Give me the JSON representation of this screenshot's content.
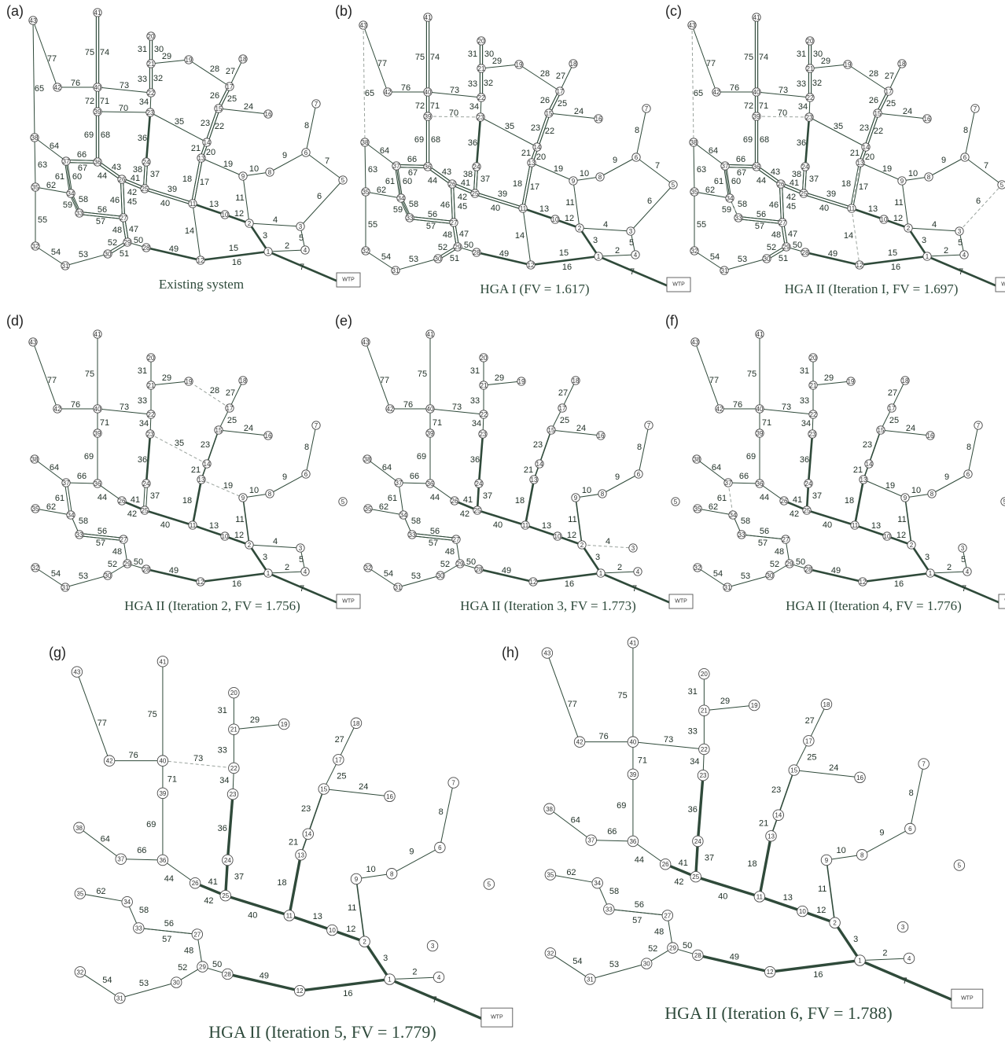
{
  "panels": [
    {
      "letter": "(a)",
      "caption": "Existing system"
    },
    {
      "letter": "(b)",
      "caption": "HGA I (FV = 1.617)"
    },
    {
      "letter": "(c)",
      "caption": "HGA II (Iteration I, FV = 1.697)"
    },
    {
      "letter": "(d)",
      "caption": "HGA II (Iteration 2, FV = 1.756)"
    },
    {
      "letter": "(e)",
      "caption": "HGA II (Iteration 3, FV = 1.773)"
    },
    {
      "letter": "(f)",
      "caption": "HGA II (Iteration 4, FV = 1.776)"
    },
    {
      "letter": "(g)",
      "caption": "HGA II (Iteration 5, FV = 1.779)"
    },
    {
      "letter": "(h)",
      "caption": "HGA II (Iteration 6, FV = 1.788)"
    }
  ],
  "wtp_label": "WTP",
  "network": {
    "nodes": [
      {
        "id": "1"
      },
      {
        "id": "2"
      },
      {
        "id": "3"
      },
      {
        "id": "4"
      },
      {
        "id": "5"
      },
      {
        "id": "6"
      },
      {
        "id": "7"
      },
      {
        "id": "8"
      },
      {
        "id": "9"
      },
      {
        "id": "10"
      },
      {
        "id": "11"
      },
      {
        "id": "12"
      },
      {
        "id": "13"
      },
      {
        "id": "14"
      },
      {
        "id": "15"
      },
      {
        "id": "16"
      },
      {
        "id": "17"
      },
      {
        "id": "18"
      },
      {
        "id": "19"
      },
      {
        "id": "20"
      },
      {
        "id": "21"
      },
      {
        "id": "22"
      },
      {
        "id": "23"
      },
      {
        "id": "24"
      },
      {
        "id": "25"
      },
      {
        "id": "26"
      },
      {
        "id": "27"
      },
      {
        "id": "28"
      },
      {
        "id": "29"
      },
      {
        "id": "30"
      },
      {
        "id": "31"
      },
      {
        "id": "32"
      },
      {
        "id": "33"
      },
      {
        "id": "34"
      },
      {
        "id": "35"
      },
      {
        "id": "36"
      },
      {
        "id": "37"
      },
      {
        "id": "38"
      },
      {
        "id": "39"
      },
      {
        "id": "40"
      },
      {
        "id": "41"
      },
      {
        "id": "42"
      },
      {
        "id": "43"
      }
    ],
    "pipes": [
      {
        "id": "7",
        "from": "WTP",
        "to": "1"
      },
      {
        "id": "2",
        "from": "1",
        "to": "4"
      },
      {
        "id": "5",
        "from": "4",
        "to": "3"
      },
      {
        "id": "3",
        "from": "1",
        "to": "2"
      },
      {
        "id": "4",
        "from": "2",
        "to": "3"
      },
      {
        "id": "6",
        "from": "3",
        "to": "5"
      },
      {
        "id": "7b",
        "label": "7",
        "from": "5",
        "to": "6"
      },
      {
        "id": "8",
        "from": "6",
        "to": "7"
      },
      {
        "id": "9",
        "from": "6",
        "to": "8"
      },
      {
        "id": "10",
        "from": "8",
        "to": "9"
      },
      {
        "id": "11",
        "from": "9",
        "to": "2"
      },
      {
        "id": "12",
        "from": "2",
        "to": "10"
      },
      {
        "id": "13",
        "from": "10",
        "to": "11"
      },
      {
        "id": "14",
        "from": "11",
        "to": "12"
      },
      {
        "id": "15",
        "from": "12",
        "to": "1"
      },
      {
        "id": "16",
        "from": "12",
        "to": "1"
      },
      {
        "id": "17",
        "from": "11",
        "to": "13"
      },
      {
        "id": "18",
        "from": "11",
        "to": "13"
      },
      {
        "id": "19",
        "from": "13",
        "to": "9"
      },
      {
        "id": "20",
        "from": "13",
        "to": "14"
      },
      {
        "id": "21",
        "from": "13",
        "to": "14"
      },
      {
        "id": "22",
        "from": "14",
        "to": "15"
      },
      {
        "id": "23",
        "from": "14",
        "to": "15"
      },
      {
        "id": "24",
        "from": "15",
        "to": "16"
      },
      {
        "id": "25",
        "from": "15",
        "to": "17"
      },
      {
        "id": "26",
        "from": "15",
        "to": "17"
      },
      {
        "id": "27",
        "from": "17",
        "to": "18"
      },
      {
        "id": "28",
        "from": "17",
        "to": "19"
      },
      {
        "id": "29",
        "from": "19",
        "to": "21"
      },
      {
        "id": "30",
        "from": "21",
        "to": "20"
      },
      {
        "id": "31",
        "from": "21",
        "to": "20"
      },
      {
        "id": "32",
        "from": "22",
        "to": "21"
      },
      {
        "id": "33",
        "from": "22",
        "to": "21"
      },
      {
        "id": "34",
        "from": "23",
        "to": "22"
      },
      {
        "id": "35",
        "from": "23",
        "to": "14"
      },
      {
        "id": "36",
        "from": "24",
        "to": "23"
      },
      {
        "id": "37",
        "from": "25",
        "to": "24"
      },
      {
        "id": "38",
        "from": "25",
        "to": "24"
      },
      {
        "id": "39",
        "from": "25",
        "to": "11"
      },
      {
        "id": "40",
        "from": "25",
        "to": "11"
      },
      {
        "id": "41",
        "from": "26",
        "to": "25"
      },
      {
        "id": "42",
        "from": "26",
        "to": "25"
      },
      {
        "id": "43",
        "from": "36",
        "to": "26"
      },
      {
        "id": "44",
        "from": "36",
        "to": "26"
      },
      {
        "id": "45",
        "from": "27",
        "to": "26"
      },
      {
        "id": "46",
        "from": "27",
        "to": "26"
      },
      {
        "id": "47",
        "from": "29",
        "to": "27"
      },
      {
        "id": "48",
        "from": "29",
        "to": "27"
      },
      {
        "id": "49",
        "from": "28",
        "to": "12"
      },
      {
        "id": "50",
        "from": "29",
        "to": "28"
      },
      {
        "id": "51",
        "from": "30",
        "to": "29"
      },
      {
        "id": "52",
        "from": "30",
        "to": "29"
      },
      {
        "id": "53",
        "from": "31",
        "to": "30"
      },
      {
        "id": "54",
        "from": "32",
        "to": "31"
      },
      {
        "id": "55",
        "from": "35",
        "to": "32"
      },
      {
        "id": "56",
        "from": "33",
        "to": "27"
      },
      {
        "id": "57",
        "from": "33",
        "to": "27"
      },
      {
        "id": "58",
        "from": "34",
        "to": "33"
      },
      {
        "id": "59",
        "from": "34",
        "to": "33"
      },
      {
        "id": "60",
        "from": "37",
        "to": "34"
      },
      {
        "id": "61",
        "from": "37",
        "to": "34"
      },
      {
        "id": "62",
        "from": "35",
        "to": "34"
      },
      {
        "id": "63",
        "from": "38",
        "to": "35"
      },
      {
        "id": "64",
        "from": "38",
        "to": "37"
      },
      {
        "id": "65",
        "from": "43",
        "to": "38"
      },
      {
        "id": "66",
        "from": "37",
        "to": "36"
      },
      {
        "id": "67",
        "from": "37",
        "to": "36"
      },
      {
        "id": "68",
        "from": "36",
        "to": "39"
      },
      {
        "id": "69",
        "from": "36",
        "to": "39"
      },
      {
        "id": "70",
        "from": "39",
        "to": "23"
      },
      {
        "id": "71",
        "from": "39",
        "to": "40"
      },
      {
        "id": "72",
        "from": "39",
        "to": "40"
      },
      {
        "id": "73",
        "from": "40",
        "to": "22"
      },
      {
        "id": "74",
        "from": "40",
        "to": "41"
      },
      {
        "id": "75",
        "from": "40",
        "to": "41"
      },
      {
        "id": "76",
        "from": "42",
        "to": "40"
      },
      {
        "id": "77",
        "from": "43",
        "to": "42"
      }
    ]
  },
  "colors": {
    "pipe": "#2f4a3a",
    "dashed": "#9aa39d",
    "node_stroke": "#4a4a4a",
    "caption": "#2e4a3b"
  }
}
